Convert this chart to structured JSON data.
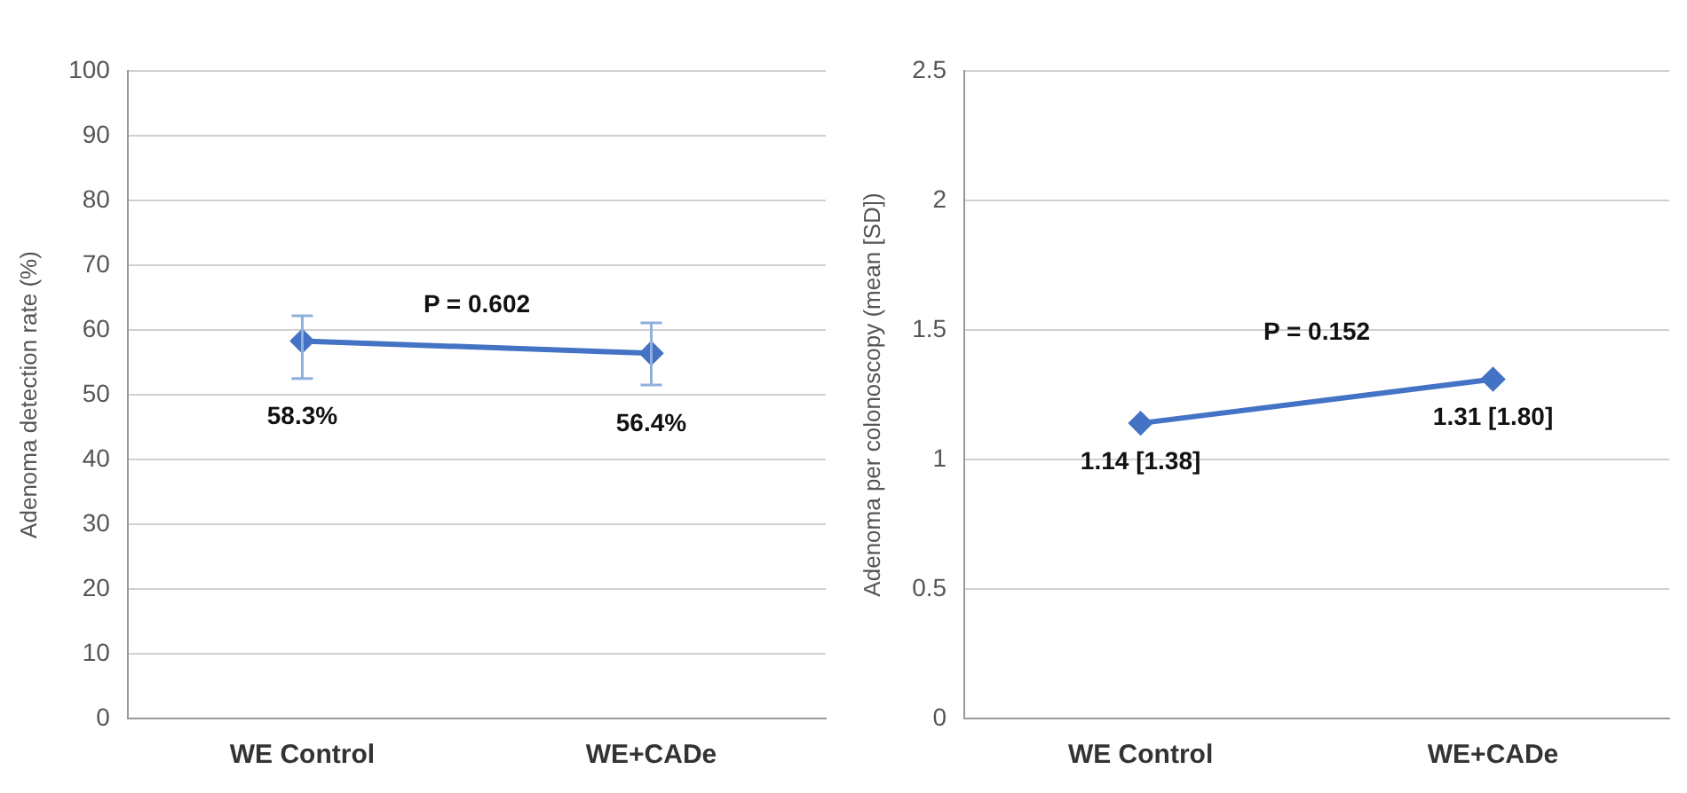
{
  "chart_data": [
    {
      "type": "line",
      "ylabel": "Adenoma detection rate (%)",
      "categories": [
        "WE Control",
        "WE+CADe"
      ],
      "series": [
        {
          "color": "#4472c4",
          "values": [
            58.3,
            56.4
          ],
          "errors": [
            [
              52.5,
              62.2
            ],
            [
              51.5,
              61.1
            ]
          ],
          "value_labels": [
            "58.3%",
            "56.4%"
          ]
        }
      ],
      "ylim": [
        0,
        100
      ],
      "yticks": [
        0,
        10,
        20,
        30,
        40,
        50,
        60,
        70,
        80,
        90,
        100
      ],
      "grid": "y",
      "legend": false,
      "marker": "diamond",
      "line_style": "solid",
      "annotations": [
        "P = 0.602"
      ]
    },
    {
      "type": "line",
      "ylabel": "Adenoma per colonoscopy (mean [SD])",
      "categories": [
        "WE Control",
        "WE+CADe"
      ],
      "series": [
        {
          "color": "#4472c4",
          "values": [
            1.14,
            1.31
          ],
          "value_labels": [
            "1.14 [1.38]",
            "1.31 [1.80]"
          ]
        }
      ],
      "ylim": [
        0,
        2.5
      ],
      "yticks": [
        0,
        0.5,
        1,
        1.5,
        2,
        2.5
      ],
      "grid": "y",
      "legend": false,
      "marker": "diamond",
      "line_style": "solid",
      "annotations": [
        "P = 0.152"
      ]
    }
  ]
}
